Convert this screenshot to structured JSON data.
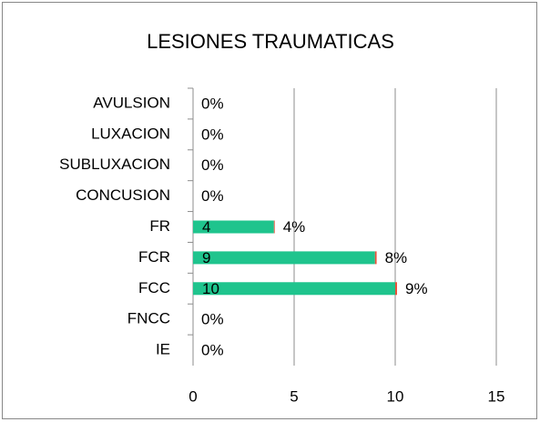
{
  "chart_data": {
    "type": "bar",
    "orientation": "horizontal",
    "stacked": true,
    "title": "LESIONES TRAUMATICAS",
    "categories": [
      "AVULSION",
      "LUXACION",
      "SUBLUXACION",
      "CONCUSION",
      "FR",
      "FCR",
      "FCC",
      "FNCC",
      "IE"
    ],
    "series": [
      {
        "color": "#1fc48d",
        "values": [
          null,
          null,
          null,
          null,
          4,
          9,
          10,
          null,
          null
        ]
      },
      {
        "color": "#e8523c",
        "values": [
          0,
          0,
          0,
          0,
          0.04,
          0.08,
          0.09,
          0,
          0
        ],
        "value_labels": [
          "0%",
          "0%",
          "0%",
          "0%",
          "4%",
          "8%",
          "9%",
          "0%",
          "0%"
        ]
      }
    ],
    "xlim": [
      0,
      15
    ],
    "xticks": [
      0,
      5,
      10,
      15
    ],
    "grid": true
  }
}
